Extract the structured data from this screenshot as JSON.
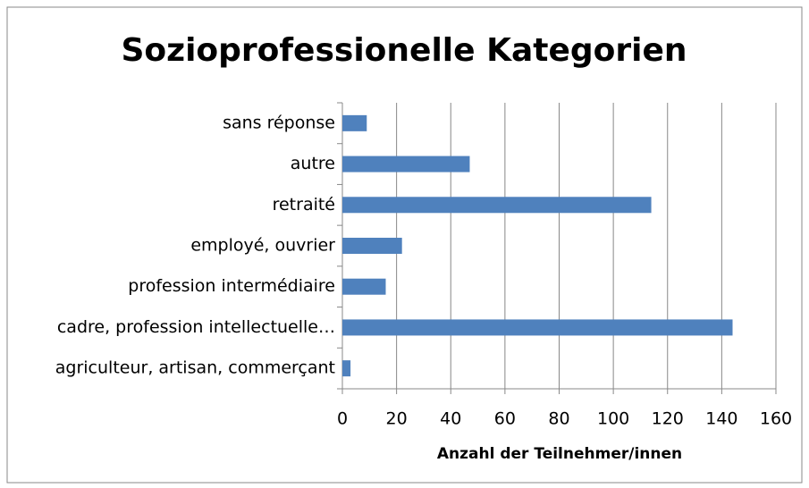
{
  "chart_data": {
    "type": "bar",
    "orientation": "horizontal",
    "title": "Sozioprofessionelle Kategorien",
    "x_label": "Anzahl der Teilnehmer/innen",
    "categories": [
      "sans réponse",
      "autre",
      "retraité",
      "employé, ouvrier",
      "profession intermédiaire",
      "cadre, profession intellectuelle…",
      "agriculteur, artisan, commerçant"
    ],
    "values": [
      9,
      47,
      114,
      22,
      16,
      144,
      3
    ],
    "color": "#4f81bd",
    "xlim": [
      0,
      160
    ],
    "xticks": [
      0,
      20,
      40,
      60,
      80,
      100,
      120,
      140,
      160
    ],
    "grid": true
  }
}
